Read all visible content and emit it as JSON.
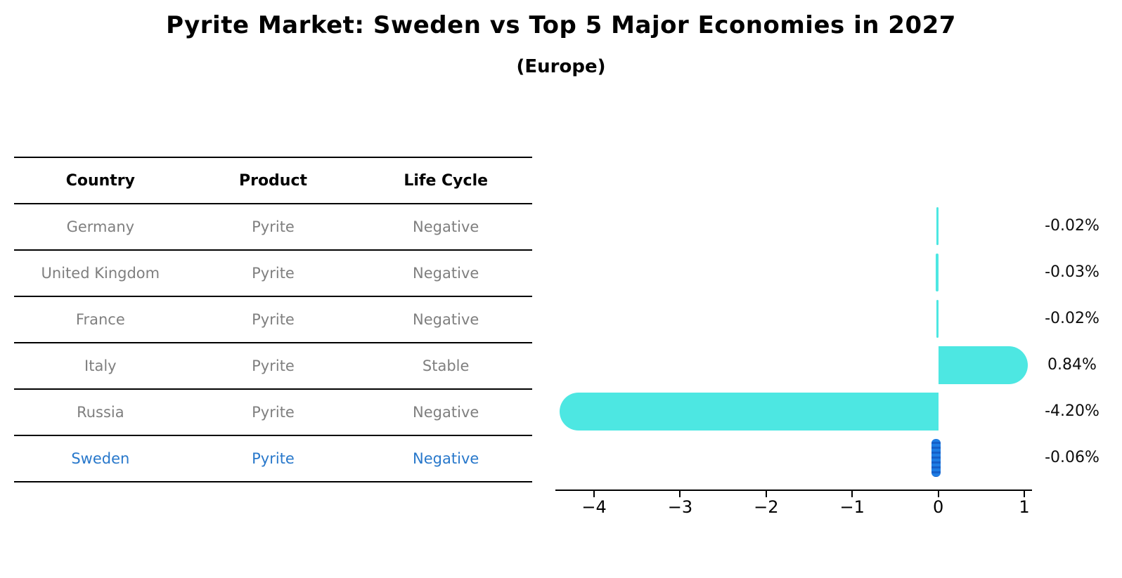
{
  "title": "Pyrite Market: Sweden vs Top 5 Major Economies in 2027",
  "subtitle": "(Europe)",
  "table": {
    "headers": [
      "Country",
      "Product",
      "Life Cycle"
    ],
    "rows": [
      {
        "country": "Germany",
        "product": "Pyrite",
        "life_cycle": "Negative",
        "highlight": false
      },
      {
        "country": "United Kingdom",
        "product": "Pyrite",
        "life_cycle": "Negative",
        "highlight": false
      },
      {
        "country": "France",
        "product": "Pyrite",
        "life_cycle": "Negative",
        "highlight": false
      },
      {
        "country": "Italy",
        "product": "Pyrite",
        "life_cycle": "Stable",
        "highlight": false
      },
      {
        "country": "Russia",
        "product": "Pyrite",
        "life_cycle": "Negative",
        "highlight": false
      },
      {
        "country": "Sweden",
        "product": "Pyrite",
        "life_cycle": "Negative",
        "highlight": true
      }
    ]
  },
  "chart_data": {
    "type": "bar",
    "orientation": "horizontal",
    "title": "Pyrite Market: Sweden vs Top 5 Major Economies in 2027",
    "subtitle": "(Europe)",
    "categories": [
      "Germany",
      "United Kingdom",
      "France",
      "Italy",
      "Russia",
      "Sweden"
    ],
    "values": [
      -0.02,
      -0.03,
      -0.02,
      0.84,
      -4.2,
      -0.06
    ],
    "value_labels": [
      "-0.02%",
      "-0.03%",
      "-0.02%",
      "0.84%",
      "-4.20%",
      "-0.06%"
    ],
    "unit": "percent",
    "x_ticks": [
      -4,
      -3,
      -2,
      -1,
      0,
      1
    ],
    "x_tick_labels": [
      "−4",
      "−3",
      "−2",
      "−1",
      "0",
      "1"
    ],
    "xlim": [
      -4.45,
      1.09
    ],
    "grid": false,
    "legend": false,
    "bar_color": "#4de7e2",
    "highlight_index": 5,
    "highlight_bar_color": "#1e7de4",
    "highlight_bar_color_dark": "#155fc8",
    "highlight_text_color": "#2878cb"
  },
  "colors": {
    "background": "#ffffff",
    "bar": "#4de7e2",
    "highlight": "#1e7de4",
    "table_text": "#7f7f7f",
    "line": "#000000"
  }
}
